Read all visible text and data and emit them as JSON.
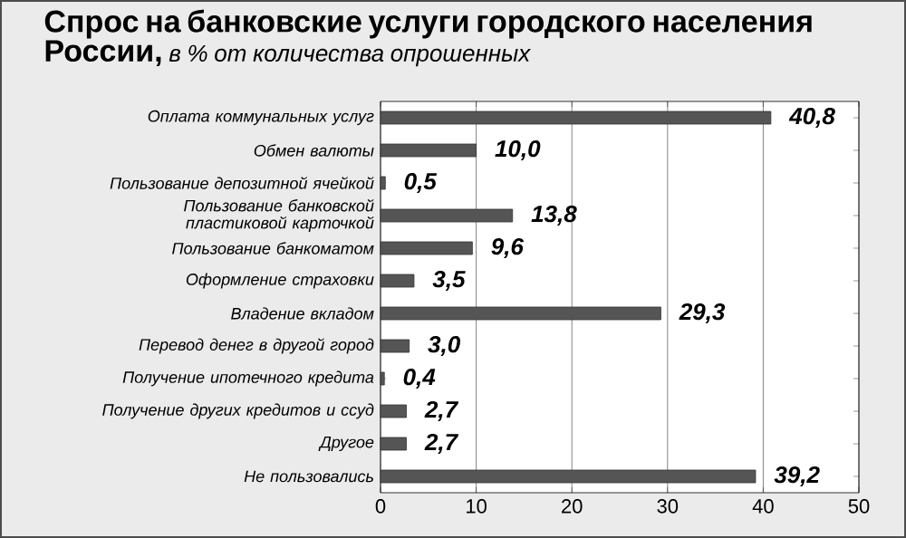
{
  "chart_data": {
    "type": "bar",
    "orientation": "horizontal",
    "title": "Спрос на банковские услуги городского населения России,",
    "subtitle": "в % от количества опрошенных",
    "categories": [
      "Оплата коммунальных услуг",
      "Обмен валюты",
      "Пользование депозитной ячейкой",
      "Пользование банковской пластиковой карточкой",
      "Пользование банкоматом",
      "Оформление страховки",
      "Владение вкладом",
      "Перевод денег в другой город",
      "Получение ипотечного кредита",
      "Получение других кредитов и ссуд",
      "Другое",
      "Не пользовались"
    ],
    "values": [
      40.8,
      10.0,
      0.5,
      13.8,
      9.6,
      3.5,
      29.3,
      3.0,
      0.4,
      2.7,
      2.7,
      39.2
    ],
    "value_labels": [
      "40,8",
      "10,0",
      "0,5",
      "13,8",
      "9,6",
      "3,5",
      "29,3",
      "3,0",
      "0,4",
      "2,7",
      "2,7",
      "39,2"
    ],
    "color": "#555555",
    "xlim": [
      0,
      50
    ],
    "xticks": [
      0,
      10,
      20,
      30,
      40,
      50
    ],
    "grid": "x"
  }
}
